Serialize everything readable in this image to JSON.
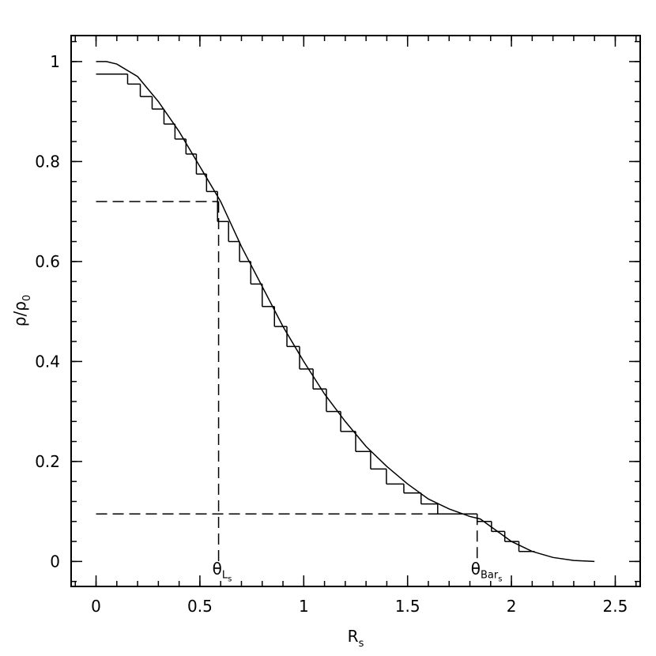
{
  "chart_data": {
    "type": "line",
    "xlabel": "R",
    "xlabel_sub": "s",
    "ylabel": "ρ/ρ",
    "ylabel_sub": "0",
    "xlim": [
      -0.12,
      2.62
    ],
    "ylim": [
      -0.05,
      1.052
    ],
    "xticks": [
      0,
      0.5,
      1,
      1.5,
      2,
      2.5
    ],
    "yticks": [
      0,
      0.2,
      0.4,
      0.6,
      0.8,
      1
    ],
    "minor_ticks": true,
    "series": [
      {
        "kind": "curve",
        "color": "#000000",
        "x": [
          0,
          0.05,
          0.1,
          0.2,
          0.3,
          0.4,
          0.5,
          0.6,
          0.7,
          0.8,
          0.9,
          1.0,
          1.1,
          1.2,
          1.3,
          1.4,
          1.5,
          1.6,
          1.7,
          1.8,
          1.85,
          1.9,
          2.0,
          2.1,
          2.2,
          2.3,
          2.4
        ],
        "values": [
          1.0,
          1.0,
          0.995,
          0.97,
          0.92,
          0.86,
          0.79,
          0.72,
          0.63,
          0.55,
          0.47,
          0.4,
          0.335,
          0.28,
          0.23,
          0.19,
          0.155,
          0.125,
          0.105,
          0.09,
          0.085,
          0.07,
          0.04,
          0.02,
          0.008,
          0.002,
          0.0
        ]
      },
      {
        "kind": "steps",
        "color": "#000000",
        "bins": [
          0,
          0.152,
          0.213,
          0.27,
          0.327,
          0.38,
          0.433,
          0.483,
          0.532,
          0.585,
          0.638,
          0.691,
          0.745,
          0.8,
          0.859,
          0.919,
          0.98,
          1.045,
          1.109,
          1.178,
          1.25,
          1.322,
          1.398,
          1.482,
          1.565,
          1.645,
          1.835,
          1.904,
          1.968,
          2.036,
          2.112
        ],
        "values": [
          0.975,
          0.955,
          0.93,
          0.905,
          0.875,
          0.845,
          0.815,
          0.775,
          0.74,
          0.68,
          0.64,
          0.6,
          0.555,
          0.51,
          0.47,
          0.43,
          0.385,
          0.345,
          0.3,
          0.26,
          0.22,
          0.185,
          0.155,
          0.137,
          0.115,
          0.095,
          0.08,
          0.06,
          0.04,
          0.02
        ]
      }
    ],
    "annotations": [
      {
        "x": 0.59,
        "y": 0.72,
        "label": "θ",
        "sub": "L",
        "subsub": "s"
      },
      {
        "x": 1.835,
        "y": 0.095,
        "label": "θ",
        "sub": "Bar",
        "subsub": "s"
      }
    ]
  }
}
